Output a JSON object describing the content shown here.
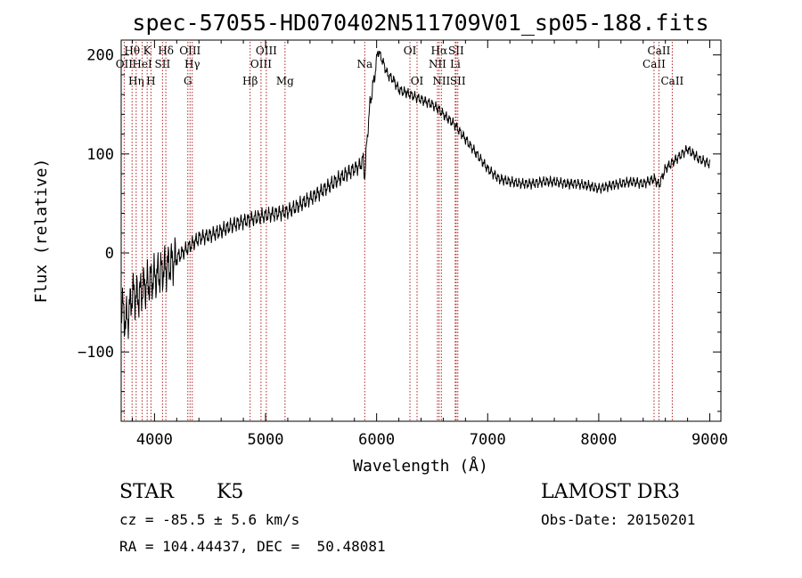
{
  "chart_data": {
    "type": "line",
    "title": "spec-57055-HD070402N511709V01_sp05-188.fits",
    "xlabel": "Wavelength (Å)",
    "ylabel": "Flux (relative)",
    "xlim": [
      3700,
      9100
    ],
    "ylim": [
      -170,
      215
    ],
    "xticks": [
      4000,
      5000,
      6000,
      7000,
      8000,
      9000
    ],
    "yticks": [
      -100,
      0,
      100,
      200
    ],
    "series": [
      {
        "x": [
          3700,
          3740,
          3770,
          3800,
          3850,
          3900,
          3950,
          4000,
          4050,
          4100,
          4150,
          4200,
          4300,
          4400,
          4500,
          4600,
          4700,
          4800,
          4900,
          5000,
          5100,
          5200,
          5300,
          5400,
          5500,
          5600,
          5700,
          5800,
          5850,
          5880,
          5893,
          5910,
          5940,
          5990,
          6010,
          6050,
          6100,
          6150,
          6200,
          6300,
          6400,
          6500,
          6560,
          6600,
          6700,
          6800,
          6900,
          7000,
          7050,
          7100,
          7200,
          7300,
          7400,
          7500,
          7600,
          7700,
          7800,
          7900,
          8000,
          8100,
          8200,
          8300,
          8400,
          8500,
          8542,
          8600,
          8700,
          8750,
          8800,
          8900,
          9000
        ],
        "y": [
          -50,
          -70,
          -60,
          -40,
          -45,
          -35,
          -30,
          -25,
          -20,
          -15,
          -10,
          -5,
          5,
          15,
          18,
          22,
          28,
          32,
          35,
          38,
          40,
          42,
          48,
          55,
          62,
          70,
          78,
          85,
          88,
          95,
          75,
          110,
          150,
          185,
          205,
          195,
          180,
          175,
          165,
          160,
          155,
          150,
          145,
          140,
          130,
          115,
          100,
          85,
          80,
          75,
          72,
          70,
          70,
          72,
          72,
          70,
          70,
          68,
          65,
          68,
          70,
          72,
          70,
          75,
          68,
          85,
          95,
          100,
          105,
          95,
          90
        ]
      }
    ],
    "spectral_lines": [
      {
        "label": "OII",
        "x": 3727,
        "row": 2
      },
      {
        "label": "Hθ",
        "x": 3798,
        "row": 1
      },
      {
        "label": "Hη",
        "x": 3835,
        "row": 3
      },
      {
        "label": "HeI",
        "x": 3889,
        "row": 2
      },
      {
        "label": "K",
        "x": 3934,
        "row": 1
      },
      {
        "label": "H",
        "x": 3968,
        "row": 3
      },
      {
        "label": "SII",
        "x": 4072,
        "row": 2
      },
      {
        "label": "Hδ",
        "x": 4102,
        "row": 1
      },
      {
        "label": "G",
        "x": 4300,
        "row": 3
      },
      {
        "label": "OIII",
        "x": 4320,
        "row": 1
      },
      {
        "label": "Hγ",
        "x": 4340,
        "row": 2
      },
      {
        "label": "Hβ",
        "x": 4861,
        "row": 3
      },
      {
        "label": "OIII",
        "x": 4959,
        "row": 2
      },
      {
        "label": "OIII",
        "x": 5007,
        "row": 1
      },
      {
        "label": "Mg",
        "x": 5175,
        "row": 3
      },
      {
        "label": "Na",
        "x": 5893,
        "row": 2
      },
      {
        "label": "OI",
        "x": 6300,
        "row": 1
      },
      {
        "label": "OI",
        "x": 6364,
        "row": 3
      },
      {
        "label": "NII",
        "x": 6548,
        "row": 2
      },
      {
        "label": "Hα",
        "x": 6563,
        "row": 1
      },
      {
        "label": "NII",
        "x": 6583,
        "row": 3
      },
      {
        "label": "Li",
        "x": 6708,
        "row": 2
      },
      {
        "label": "SII",
        "x": 6716,
        "row": 1
      },
      {
        "label": "SII",
        "x": 6731,
        "row": 3
      },
      {
        "label": "CaII",
        "x": 8498,
        "row": 2
      },
      {
        "label": "CaII",
        "x": 8542,
        "row": 1
      },
      {
        "label": "CaII",
        "x": 8662,
        "row": 3
      }
    ]
  },
  "info": {
    "object_class": "STAR",
    "subclass": "K5",
    "survey": "LAMOST DR3",
    "redshift": "cz = -85.5 ± 5.6 km/s",
    "obs_date": "Obs-Date: 20150201",
    "coords": "RA = 104.44437, DEC =  50.48081"
  }
}
